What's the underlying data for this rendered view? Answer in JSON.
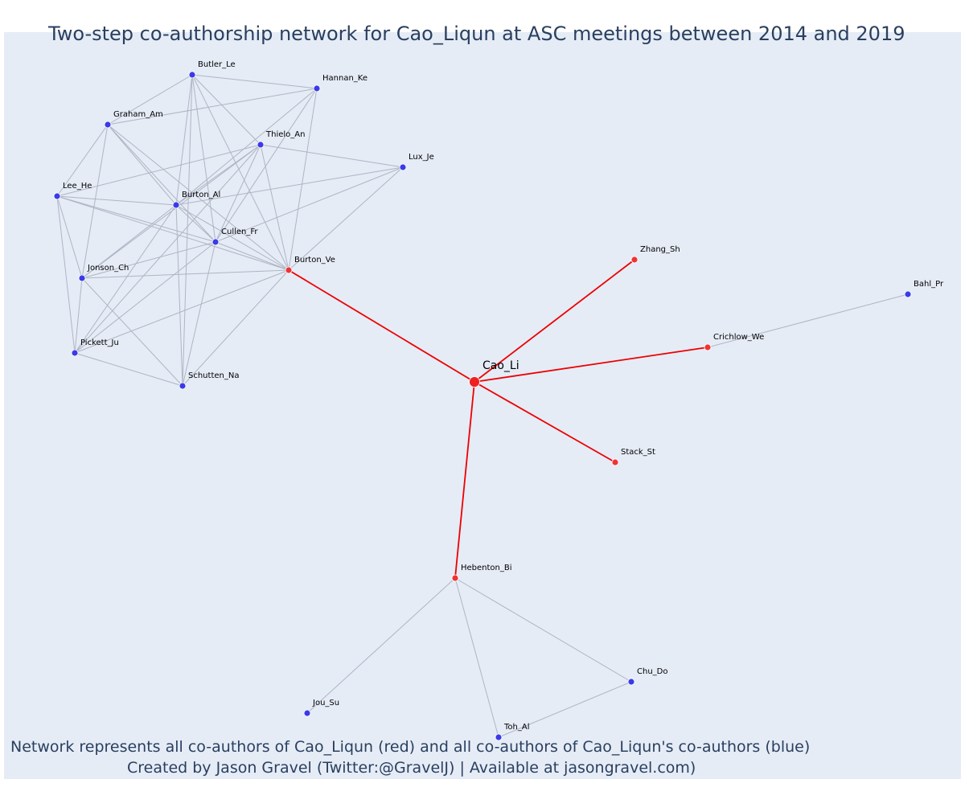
{
  "title": "Two-step co-authorship network for Cao_Liqun at ASC meetings between 2014 and 2019",
  "footer": {
    "line1": "Network represents all co-authors of Cao_Liqun (red) and all co-authors of Cao_Liqun's co-authors (blue)",
    "line2": "Created by Jason Gravel (Twitter:@GravelJ) | Available at jasongravel.com)"
  },
  "colors": {
    "background": "#e5ecf6",
    "center_node": "#ee2222",
    "coauthor_node": "#ee3333",
    "second_step_node": "#3a3ae8",
    "coauthor_edge": "#ee0000",
    "other_edge": "#b0b4c4",
    "text": "#2a3f5f"
  },
  "nodes": [
    {
      "id": "Cao_Li",
      "label": "Cao_Li",
      "group": "center"
    },
    {
      "id": "Burton_Ve",
      "label": "Burton_Ve",
      "group": "coauthor"
    },
    {
      "id": "Zhang_Sh",
      "label": "Zhang_Sh",
      "group": "coauthor"
    },
    {
      "id": "Crichlow_We",
      "label": "Crichlow_We",
      "group": "coauthor"
    },
    {
      "id": "Stack_St",
      "label": "Stack_St",
      "group": "coauthor"
    },
    {
      "id": "Hebenton_Bi",
      "label": "Hebenton_Bi",
      "group": "coauthor"
    },
    {
      "id": "Butler_Le",
      "label": "Butler_Le",
      "group": "second"
    },
    {
      "id": "Hannan_Ke",
      "label": "Hannan_Ke",
      "group": "second"
    },
    {
      "id": "Graham_Am",
      "label": "Graham_Am",
      "group": "second"
    },
    {
      "id": "Thielo_An",
      "label": "Thielo_An",
      "group": "second"
    },
    {
      "id": "Lux_Je",
      "label": "Lux_Je",
      "group": "second"
    },
    {
      "id": "Lee_He",
      "label": "Lee_He",
      "group": "second"
    },
    {
      "id": "Burton_Al",
      "label": "Burton_Al",
      "group": "second"
    },
    {
      "id": "Cullen_Fr",
      "label": "Cullen_Fr",
      "group": "second"
    },
    {
      "id": "Jonson_Ch",
      "label": "Jonson_Ch",
      "group": "second"
    },
    {
      "id": "Pickett_Ju",
      "label": "Pickett_Ju",
      "group": "second"
    },
    {
      "id": "Schutten_Na",
      "label": "Schutten_Na",
      "group": "second"
    },
    {
      "id": "Bahl_Pr",
      "label": "Bahl_Pr",
      "group": "second"
    },
    {
      "id": "Jou_Su",
      "label": "Jou_Su",
      "group": "second"
    },
    {
      "id": "Toh_Al",
      "label": "Toh_Al",
      "group": "second"
    },
    {
      "id": "Chu_Do",
      "label": "Chu_Do",
      "group": "second"
    }
  ],
  "edges": [
    [
      "Cao_Li",
      "Burton_Ve"
    ],
    [
      "Cao_Li",
      "Zhang_Sh"
    ],
    [
      "Cao_Li",
      "Crichlow_We"
    ],
    [
      "Cao_Li",
      "Stack_St"
    ],
    [
      "Cao_Li",
      "Hebenton_Bi"
    ],
    [
      "Crichlow_We",
      "Bahl_Pr"
    ],
    [
      "Hebenton_Bi",
      "Jou_Su"
    ],
    [
      "Hebenton_Bi",
      "Toh_Al"
    ],
    [
      "Hebenton_Bi",
      "Chu_Do"
    ],
    [
      "Toh_Al",
      "Chu_Do"
    ],
    [
      "Burton_Ve",
      "Butler_Le"
    ],
    [
      "Burton_Ve",
      "Hannan_Ke"
    ],
    [
      "Burton_Ve",
      "Graham_Am"
    ],
    [
      "Burton_Ve",
      "Thielo_An"
    ],
    [
      "Burton_Ve",
      "Lux_Je"
    ],
    [
      "Burton_Ve",
      "Lee_He"
    ],
    [
      "Burton_Ve",
      "Burton_Al"
    ],
    [
      "Burton_Ve",
      "Cullen_Fr"
    ],
    [
      "Burton_Ve",
      "Jonson_Ch"
    ],
    [
      "Burton_Ve",
      "Pickett_Ju"
    ],
    [
      "Burton_Ve",
      "Schutten_Na"
    ],
    [
      "Butler_Le",
      "Hannan_Ke"
    ],
    [
      "Butler_Le",
      "Graham_Am"
    ],
    [
      "Butler_Le",
      "Thielo_An"
    ],
    [
      "Butler_Le",
      "Burton_Al"
    ],
    [
      "Butler_Le",
      "Cullen_Fr"
    ],
    [
      "Butler_Le",
      "Schutten_Na"
    ],
    [
      "Hannan_Ke",
      "Graham_Am"
    ],
    [
      "Hannan_Ke",
      "Burton_Al"
    ],
    [
      "Hannan_Ke",
      "Cullen_Fr"
    ],
    [
      "Graham_Am",
      "Burton_Al"
    ],
    [
      "Graham_Am",
      "Cullen_Fr"
    ],
    [
      "Graham_Am",
      "Jonson_Ch"
    ],
    [
      "Graham_Am",
      "Lee_He"
    ],
    [
      "Thielo_An",
      "Lux_Je"
    ],
    [
      "Thielo_An",
      "Burton_Al"
    ],
    [
      "Thielo_An",
      "Cullen_Fr"
    ],
    [
      "Thielo_An",
      "Jonson_Ch"
    ],
    [
      "Thielo_An",
      "Pickett_Ju"
    ],
    [
      "Lux_Je",
      "Burton_Al"
    ],
    [
      "Lux_Je",
      "Cullen_Fr"
    ],
    [
      "Lee_He",
      "Burton_Al"
    ],
    [
      "Lee_He",
      "Cullen_Fr"
    ],
    [
      "Lee_He",
      "Jonson_Ch"
    ],
    [
      "Lee_He",
      "Pickett_Ju"
    ],
    [
      "Lee_He",
      "Thielo_An"
    ],
    [
      "Burton_Al",
      "Cullen_Fr"
    ],
    [
      "Burton_Al",
      "Jonson_Ch"
    ],
    [
      "Burton_Al",
      "Pickett_Ju"
    ],
    [
      "Burton_Al",
      "Schutten_Na"
    ],
    [
      "Cullen_Fr",
      "Jonson_Ch"
    ],
    [
      "Cullen_Fr",
      "Pickett_Ju"
    ],
    [
      "Cullen_Fr",
      "Schutten_Na"
    ],
    [
      "Jonson_Ch",
      "Pickett_Ju"
    ],
    [
      "Jonson_Ch",
      "Schutten_Na"
    ],
    [
      "Pickett_Ju",
      "Schutten_Na"
    ]
  ]
}
